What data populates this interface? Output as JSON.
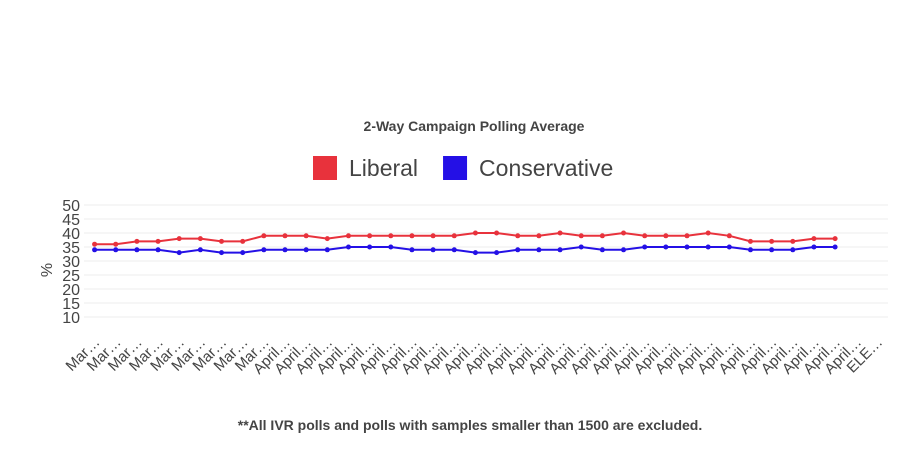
{
  "chart_data": {
    "type": "line",
    "title": "2-Way Campaign Polling Average",
    "ylabel": "%",
    "footnote": "**All IVR polls and polls with samples smaller than 1500 are excluded.",
    "categories": [
      "Mar…",
      "Mar…",
      "Mar…",
      "Mar…",
      "Mar…",
      "Mar…",
      "Mar…",
      "Mar…",
      "Mar…",
      "April…",
      "April…",
      "April…",
      "April…",
      "April…",
      "April…",
      "April…",
      "April…",
      "April…",
      "April…",
      "April…",
      "April…",
      "April…",
      "April…",
      "April…",
      "April…",
      "April…",
      "April…",
      "April…",
      "April…",
      "April…",
      "April…",
      "April…",
      "April…",
      "April…",
      "April…",
      "April…",
      "April…",
      "ELE…"
    ],
    "series": [
      {
        "name": "Liberal",
        "color": "#e8323c",
        "values": [
          36,
          36,
          37,
          37,
          38,
          38,
          37,
          37,
          39,
          39,
          39,
          38,
          39,
          39,
          39,
          39,
          39,
          39,
          40,
          40,
          39,
          39,
          40,
          39,
          39,
          40,
          39,
          39,
          39,
          40,
          39,
          37,
          37,
          37,
          38,
          38,
          null,
          null
        ]
      },
      {
        "name": "Conservative",
        "color": "#2410e6",
        "values": [
          34,
          34,
          34,
          34,
          33,
          34,
          33,
          33,
          34,
          34,
          34,
          34,
          35,
          35,
          35,
          34,
          34,
          34,
          33,
          33,
          34,
          34,
          34,
          35,
          34,
          34,
          35,
          35,
          35,
          35,
          35,
          34,
          34,
          34,
          35,
          35,
          null,
          null
        ]
      }
    ],
    "ylim": [
      5,
      50
    ],
    "yticks": [
      10,
      15,
      20,
      25,
      30,
      35,
      40,
      45,
      50
    ],
    "grid": true,
    "legend": "top"
  }
}
